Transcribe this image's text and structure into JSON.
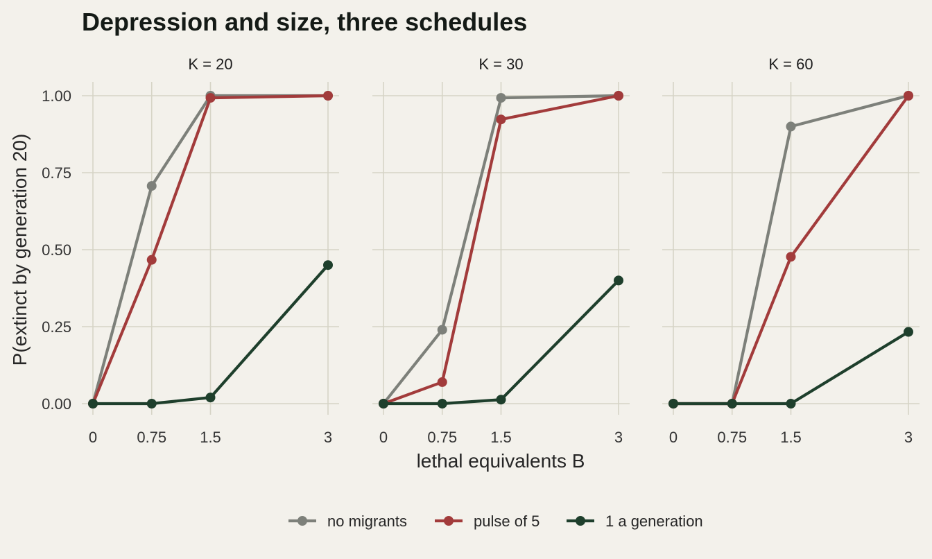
{
  "chart_data": {
    "type": "line",
    "title": "Depression and size, three schedules",
    "xlabel": "lethal equivalents B",
    "ylabel": "P(extinct by generation 20)",
    "x_ticks": [
      "0",
      "0.75",
      "1.5",
      "3"
    ],
    "x": [
      0,
      0.75,
      1.5,
      3
    ],
    "xlim": [
      -0.1,
      3.1
    ],
    "ylim": [
      -0.05,
      1.05
    ],
    "y_ticks": [
      "0.00",
      "0.25",
      "0.50",
      "0.75",
      "1.00"
    ],
    "y_tick_values": [
      0,
      0.25,
      0.5,
      0.75,
      1.0
    ],
    "grid": true,
    "legend_position": "bottom",
    "series_meta": [
      {
        "name": "no migrants",
        "color": "#7d807a"
      },
      {
        "name": "pulse of 5",
        "color": "#a23b3b"
      },
      {
        "name": "1 a generation",
        "color": "#1e3f2c"
      }
    ],
    "panels": [
      {
        "label": "K = 20",
        "series": [
          {
            "name": "no migrants",
            "values": [
              0,
              0.707,
              1.0,
              1.0
            ]
          },
          {
            "name": "pulse of 5",
            "values": [
              0,
              0.467,
              0.993,
              1.0
            ]
          },
          {
            "name": "1 a generation",
            "values": [
              0,
              0,
              0.02,
              0.45
            ]
          }
        ]
      },
      {
        "label": "K = 30",
        "series": [
          {
            "name": "no migrants",
            "values": [
              0,
              0.24,
              0.993,
              1.0
            ]
          },
          {
            "name": "pulse of 5",
            "values": [
              0,
              0.07,
              0.923,
              1.0
            ]
          },
          {
            "name": "1 a generation",
            "values": [
              0,
              0,
              0.013,
              0.4
            ]
          }
        ]
      },
      {
        "label": "K = 60",
        "series": [
          {
            "name": "no migrants",
            "values": [
              0,
              0,
              0.9,
              1.0
            ]
          },
          {
            "name": "pulse of 5",
            "values": [
              0,
              0,
              0.477,
              1.0
            ]
          },
          {
            "name": "1 a generation",
            "values": [
              0,
              0,
              0,
              0.233
            ]
          }
        ]
      }
    ]
  }
}
